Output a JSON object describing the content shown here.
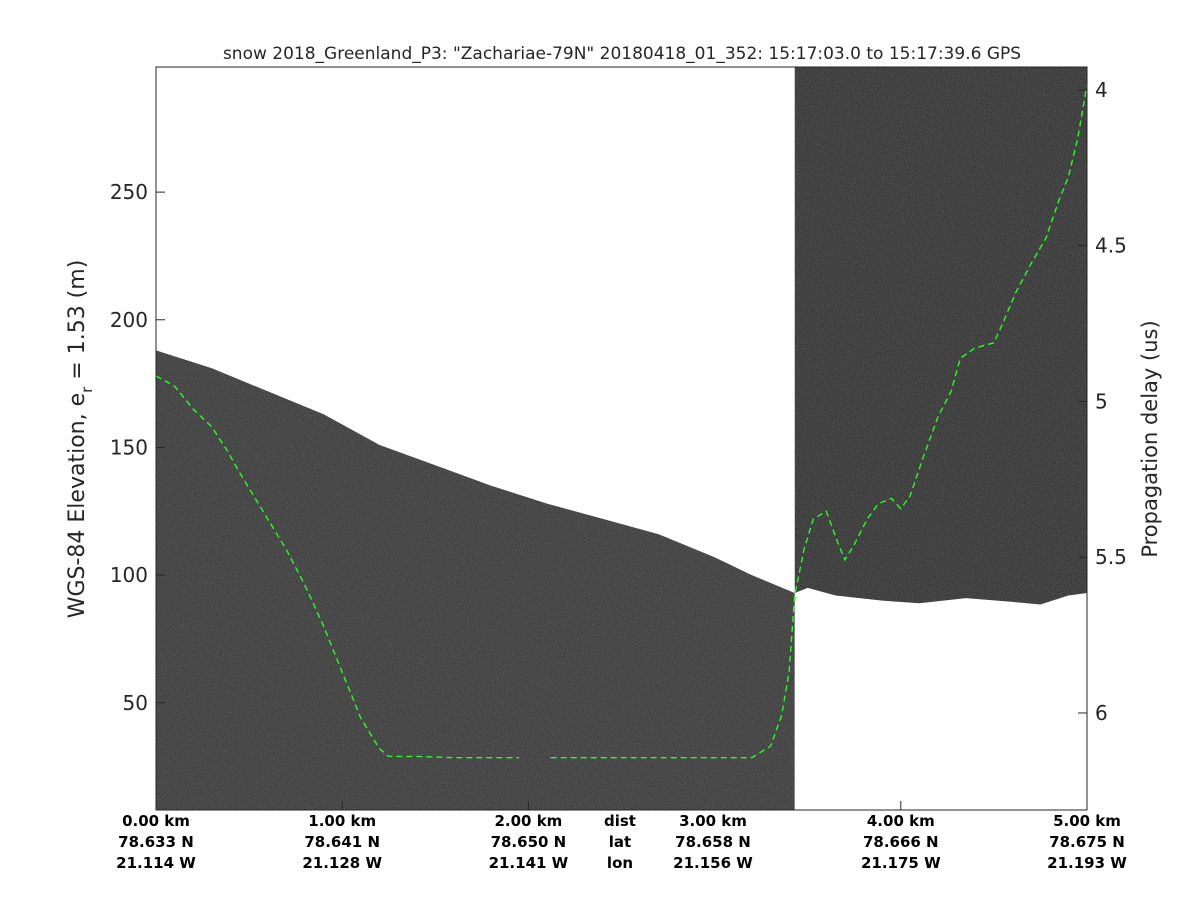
{
  "colors": {
    "radar_bg": "#2f2f2f",
    "radar_bg_dark": "#262626",
    "white_region": "#ffffff",
    "surface_trace": "#22ff22",
    "axis": "#262626"
  },
  "chart_data": {
    "type": "radar-echogram",
    "title": "snow 2018_Greenland_P3: \"Zachariae-79N\"  20180418_01_352: 15:17:03.0 to 15:17:39.6 GPS",
    "ylabel_left_main": "WGS-84 Elevation, e",
    "ylabel_left_sub": "r",
    "ylabel_left_suffix": " = 1.53 (m)",
    "ylabel_right": "Propagation delay (us)",
    "x_range_km": [
      0,
      5.0
    ],
    "y_range_m": [
      8,
      299
    ],
    "left_ticks": [
      {
        "value": 50,
        "label": "50"
      },
      {
        "value": 100,
        "label": "100"
      },
      {
        "value": 150,
        "label": "150"
      },
      {
        "value": 200,
        "label": "200"
      },
      {
        "value": 250,
        "label": "250"
      }
    ],
    "right_ticks": [
      {
        "value": 4.0,
        "label": "4",
        "elev": 290
      },
      {
        "value": 4.5,
        "label": "4.5",
        "elev": 229
      },
      {
        "value": 5.0,
        "label": "5",
        "elev": 168
      },
      {
        "value": 5.5,
        "label": "5.5",
        "elev": 107
      },
      {
        "value": 6.0,
        "label": "6",
        "elev": 46
      }
    ],
    "bottom_ticks": [
      {
        "km": 0.0,
        "dist": "0.00 km",
        "lat": "78.633 N",
        "lon": "21.114 W"
      },
      {
        "km": 1.0,
        "dist": "1.00 km",
        "lat": "78.641 N",
        "lon": "21.128 W"
      },
      {
        "km": 2.0,
        "dist": "2.00 km",
        "lat": "78.650 N",
        "lon": "21.141 W"
      },
      {
        "km": 4.0,
        "dist": "4.00 km",
        "lat": "78.666 N",
        "lon": "21.175 W"
      },
      {
        "km": 5.0,
        "dist": "5.00 km",
        "lat": "78.675 N",
        "lon": "21.193 W"
      }
    ],
    "mid_tick": {
      "km": 3.0,
      "dist": "3.00 km",
      "lat": "78.658 N",
      "lon": "21.156 W"
    },
    "row_labels": {
      "dist": "dist",
      "lat": "lat",
      "lon": "lon"
    },
    "segment_boundary_km": 3.43,
    "upper_boundary_seg1": [
      [
        0,
        188
      ],
      [
        0.3,
        181
      ],
      [
        0.6,
        172
      ],
      [
        0.9,
        163
      ],
      [
        1.2,
        151
      ],
      [
        1.5,
        143
      ],
      [
        1.8,
        135
      ],
      [
        2.1,
        128
      ],
      [
        2.4,
        122
      ],
      [
        2.7,
        116
      ],
      [
        3.0,
        107
      ],
      [
        3.2,
        100
      ],
      [
        3.43,
        93
      ]
    ],
    "lower_boundary_seg2": [
      [
        3.43,
        93
      ],
      [
        3.5,
        95
      ],
      [
        3.65,
        92
      ],
      [
        3.9,
        90
      ],
      [
        4.1,
        89
      ],
      [
        4.35,
        91
      ],
      [
        4.6,
        89.5
      ],
      [
        4.75,
        88.5
      ],
      [
        4.9,
        92
      ],
      [
        5.0,
        93
      ]
    ],
    "surface_trace": [
      [
        0,
        178
      ],
      [
        0.1,
        174
      ],
      [
        0.2,
        165
      ],
      [
        0.3,
        158
      ],
      [
        0.38,
        149
      ],
      [
        0.45,
        140
      ],
      [
        0.55,
        128
      ],
      [
        0.7,
        110
      ],
      [
        0.8,
        96
      ],
      [
        0.9,
        80
      ],
      [
        1.0,
        62
      ],
      [
        1.1,
        44
      ],
      [
        1.2,
        32
      ],
      [
        1.25,
        29
      ],
      [
        1.4,
        29
      ],
      [
        1.6,
        28.5
      ],
      [
        1.95,
        28.5
      ],
      [
        2.02,
        null
      ],
      [
        2.12,
        28.5
      ],
      [
        2.5,
        28.5
      ],
      [
        3.2,
        28.5
      ],
      [
        3.3,
        33
      ],
      [
        3.36,
        45
      ],
      [
        3.4,
        62
      ],
      [
        3.43,
        92
      ],
      [
        3.48,
        110
      ],
      [
        3.53,
        122
      ],
      [
        3.6,
        125
      ],
      [
        3.66,
        113
      ],
      [
        3.7,
        106
      ],
      [
        3.75,
        112
      ],
      [
        3.82,
        122
      ],
      [
        3.88,
        128
      ],
      [
        3.95,
        130
      ],
      [
        4.0,
        126
      ],
      [
        4.05,
        131
      ],
      [
        4.12,
        146
      ],
      [
        4.2,
        162
      ],
      [
        4.27,
        172
      ],
      [
        4.32,
        185
      ],
      [
        4.4,
        189
      ],
      [
        4.5,
        191
      ],
      [
        4.55,
        199
      ],
      [
        4.62,
        211
      ],
      [
        4.7,
        222
      ],
      [
        4.78,
        232
      ],
      [
        4.85,
        247
      ],
      [
        4.9,
        256
      ],
      [
        4.95,
        271
      ],
      [
        5.0,
        292
      ]
    ]
  }
}
